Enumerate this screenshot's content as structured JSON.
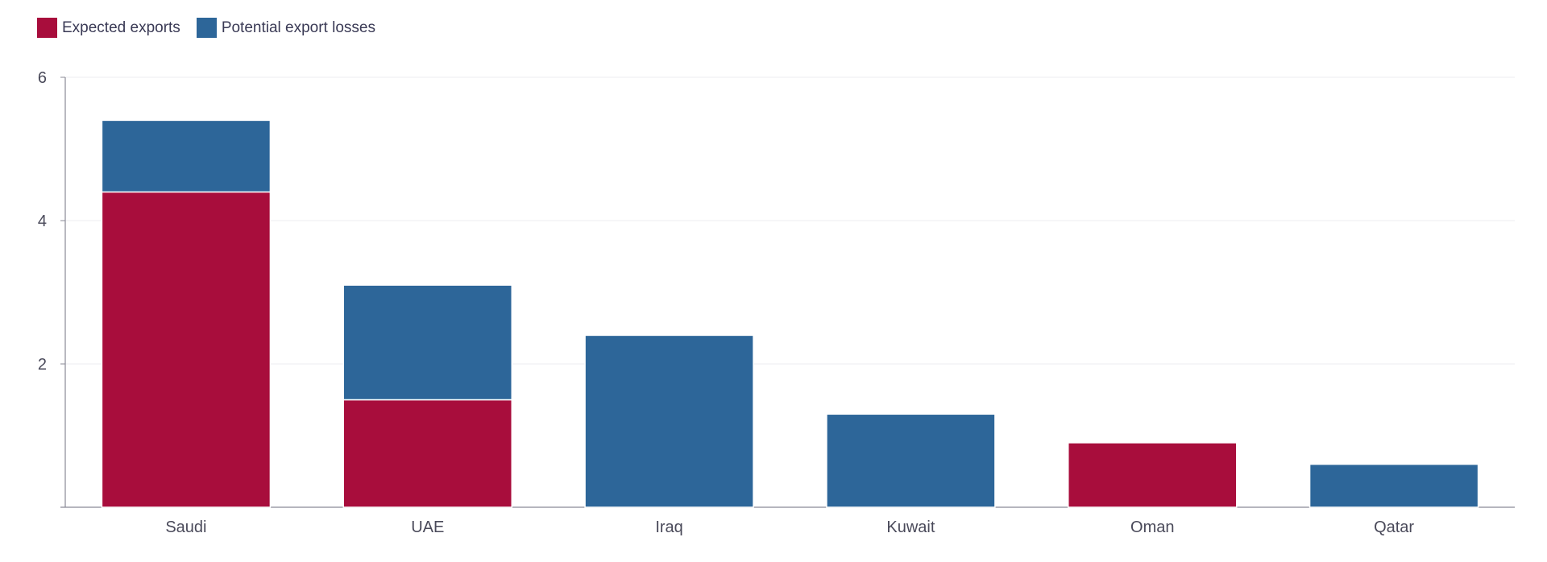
{
  "chart_data": {
    "type": "bar",
    "stacked": true,
    "categories": [
      "Saudi",
      "UAE",
      "Iraq",
      "Kuwait",
      "Oman",
      "Qatar"
    ],
    "series": [
      {
        "name": "Expected exports",
        "color": "#a80d3c",
        "values": [
          4.4,
          1.5,
          0,
          0,
          0.9,
          0
        ]
      },
      {
        "name": "Potential export losses",
        "color": "#2d6699",
        "values": [
          1.0,
          1.6,
          2.4,
          1.3,
          0,
          0.6
        ]
      }
    ],
    "title": "",
    "xlabel": "",
    "ylabel": "",
    "ylim": [
      0,
      6
    ],
    "yticks": [
      "2",
      "4",
      "6"
    ],
    "grid": true,
    "legend_position": "top-left"
  }
}
